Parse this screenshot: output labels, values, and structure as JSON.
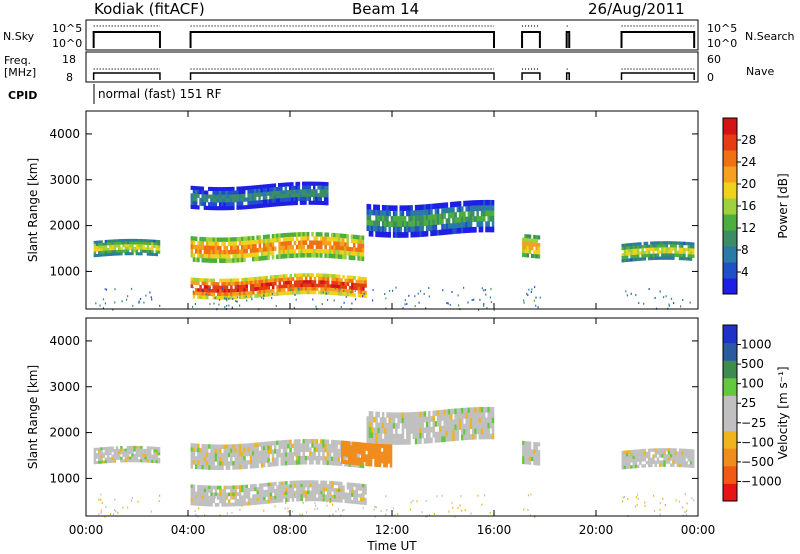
{
  "header": {
    "radar": "Kodiak (fitACF)",
    "beam": "Beam 14",
    "date": "26/Aug/2011"
  },
  "params": {
    "nsky_label": "N.Sky",
    "nsky_ticks": [
      "10^5",
      "10^0"
    ],
    "nsearch_label": "N.Search",
    "nsearch_ticks": [
      "10^5",
      "10^0"
    ],
    "freq_label": "Freq.",
    "freq_unit": "[MHz]",
    "freq_ticks": [
      "18",
      "8"
    ],
    "nave_label": "Nave",
    "nave_ticks": [
      "60",
      "0"
    ],
    "cpid_label": "CPID",
    "cpid_value": "normal (fast) 151 RF"
  },
  "chart_data": [
    {
      "type": "heatmap",
      "panel": "power",
      "ylabel": "Slant Range [km]",
      "xlabel": "Time UT",
      "xlim": [
        "00:00",
        "24:00"
      ],
      "ylim": [
        180,
        4500
      ],
      "yticks": [
        "1000",
        "2000",
        "3000",
        "4000"
      ],
      "xticks": [
        "00:00",
        "04:00",
        "08:00",
        "12:00",
        "16:00",
        "20:00",
        "00:00"
      ],
      "colorbar": {
        "label": "Power [dB]",
        "ticks": [
          "4",
          "8",
          "12",
          "16",
          "20",
          "24",
          "28"
        ],
        "colors": [
          "#1e1ee6",
          "#2050c8",
          "#2a7aa8",
          "#3c8c64",
          "#4cae3c",
          "#9ed23c",
          "#f0d21e",
          "#f5a01e",
          "#f07014",
          "#e63c14",
          "#d21414"
        ]
      },
      "observing_intervals_h": [
        [
          0.3,
          2.9
        ],
        [
          4.1,
          16.0
        ],
        [
          17.1,
          17.8
        ],
        [
          18.85,
          18.95
        ],
        [
          21.0,
          23.85
        ]
      ],
      "echo_bands": [
        {
          "t": [
            0.3,
            2.9
          ],
          "range_km": [
            1300,
            1650
          ],
          "power_db": 14
        },
        {
          "t": [
            4.1,
            10.9
          ],
          "range_km": [
            1250,
            1800
          ],
          "power_db": 20
        },
        {
          "t": [
            4.1,
            11.0
          ],
          "range_km": [
            450,
            900
          ],
          "power_db": 24
        },
        {
          "t": [
            11.0,
            16.0
          ],
          "range_km": [
            1800,
            2500
          ],
          "power_db": 8
        },
        {
          "t": [
            4.1,
            9.5
          ],
          "range_km": [
            2400,
            2900
          ],
          "power_db": 6
        },
        {
          "t": [
            17.1,
            17.8
          ],
          "range_km": [
            1300,
            1800
          ],
          "power_db": 18
        },
        {
          "t": [
            21.0,
            23.85
          ],
          "range_km": [
            1200,
            1600
          ],
          "power_db": 14
        }
      ]
    },
    {
      "type": "heatmap",
      "panel": "velocity",
      "ylabel": "Slant Range [km]",
      "xlabel": "Time UT",
      "xlim": [
        "00:00",
        "24:00"
      ],
      "ylim": [
        180,
        4500
      ],
      "yticks": [
        "1000",
        "2000",
        "3000",
        "4000"
      ],
      "xticks": [
        "00:00",
        "04:00",
        "08:00",
        "12:00",
        "16:00",
        "20:00",
        "00:00"
      ],
      "colorbar": {
        "label": "Velocity [m s⁻¹]",
        "ticks": [
          "1000",
          "500",
          "100",
          "25",
          "−25",
          "−100",
          "−500",
          "−1000"
        ],
        "colors": [
          "#1e32c8",
          "#2a5aa0",
          "#3c8c50",
          "#64c83c",
          "#c0c0c0",
          "#c0c0c0",
          "#f0b41e",
          "#f08c1e",
          "#f05a14",
          "#e61414"
        ]
      },
      "echo_bands": [
        {
          "t": [
            0.3,
            2.9
          ],
          "range_km": [
            1300,
            1650
          ],
          "velocity_ms": 0
        },
        {
          "t": [
            4.1,
            10.9
          ],
          "range_km": [
            1250,
            1800
          ],
          "velocity_ms": 0
        },
        {
          "t": [
            4.1,
            11.0
          ],
          "range_km": [
            450,
            900
          ],
          "velocity_ms": 0
        },
        {
          "t": [
            11.0,
            16.0
          ],
          "range_km": [
            1800,
            2500
          ],
          "velocity_ms": 0
        },
        {
          "t": [
            10.0,
            12.0
          ],
          "range_km": [
            1300,
            1800
          ],
          "velocity_ms": -200
        },
        {
          "t": [
            17.1,
            17.8
          ],
          "range_km": [
            1300,
            1800
          ],
          "velocity_ms": 0
        },
        {
          "t": [
            21.0,
            23.85
          ],
          "range_km": [
            1200,
            1600
          ],
          "velocity_ms": 0
        }
      ]
    }
  ]
}
